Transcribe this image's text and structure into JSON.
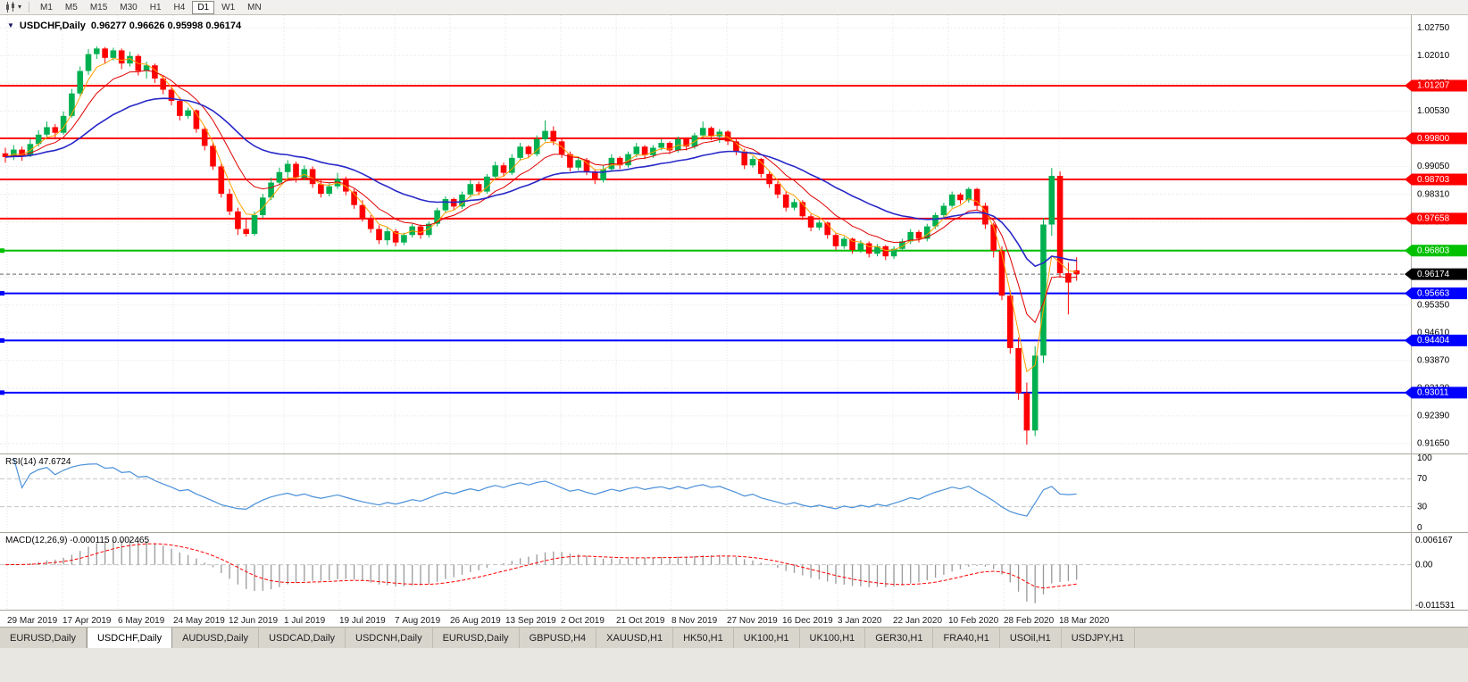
{
  "toolbar": {
    "timeframes": [
      "M1",
      "M5",
      "M15",
      "M30",
      "H1",
      "H4",
      "D1",
      "W1",
      "MN"
    ],
    "active_timeframe": "D1"
  },
  "chart": {
    "symbol_period": "USDCHF,Daily",
    "ohlc_line": "0.96277 0.96626 0.95998 0.96174"
  },
  "chart_data": {
    "type": "candlestick",
    "symbol": "USDCHF",
    "timeframe": "Daily",
    "title": "USDCHF,Daily 0.96277 0.96626 0.95998 0.96174",
    "current_bar": {
      "open": 0.96277,
      "high": 0.96626,
      "low": 0.95998,
      "close": 0.96174
    },
    "y_axis": {
      "price_max": 1.0309,
      "price_min": 0.9141,
      "tick_start": 1.0275,
      "tick_step": 0.0074,
      "tick_count": 16,
      "decimals": 5
    },
    "x_labels": [
      "29 Mar 2019",
      "17 Apr 2019",
      "6 May 2019",
      "24 May 2019",
      "12 Jun 2019",
      "1 Jul 2019",
      "19 Jul 2019",
      "7 Aug 2019",
      "26 Aug 2019",
      "13 Sep 2019",
      "2 Oct 2019",
      "21 Oct 2019",
      "8 Nov 2019",
      "27 Nov 2019",
      "16 Dec 2019",
      "3 Jan 2020",
      "22 Jan 2020",
      "10 Feb 2020",
      "28 Feb 2020",
      "18 Mar 2020"
    ],
    "colors": {
      "up": "#00b050",
      "down": "#ff0000",
      "grid": "#e3e3e3",
      "axis_text": "#000000",
      "date_text": "#1c1c1c"
    },
    "levels": [
      {
        "value": 1.01207,
        "color": "#ff0000",
        "width": 2,
        "handle": false
      },
      {
        "value": 0.998,
        "color": "#ff0000",
        "width": 2,
        "handle": false
      },
      {
        "value": 0.98703,
        "color": "#ff0000",
        "width": 2,
        "handle": false
      },
      {
        "value": 0.97658,
        "color": "#ff0000",
        "width": 2,
        "handle": false
      },
      {
        "value": 0.96803,
        "color": "#00c000",
        "width": 2,
        "handle": true
      },
      {
        "value": 0.95663,
        "color": "#0000ff",
        "width": 2,
        "handle": true
      },
      {
        "value": 0.94404,
        "color": "#0000ff",
        "width": 2,
        "handle": true
      },
      {
        "value": 0.93011,
        "color": "#0000ff",
        "width": 2,
        "handle": true
      }
    ],
    "current_price": {
      "value": 0.96174,
      "badge_color": "#000000",
      "line_color": "#666666"
    },
    "moving_averages": [
      {
        "period": 4,
        "color": "#ffa000",
        "width": 1
      },
      {
        "period": 9,
        "color": "#e00000",
        "width": 1
      },
      {
        "period": 25,
        "color": "#2828c8",
        "width": 1.6
      }
    ],
    "rsi": {
      "label": "RSI(14)",
      "value": "47.6724",
      "period": 14,
      "color": "#4a90d9",
      "axis_labels": [
        100,
        70,
        30,
        0
      ],
      "dashed_levels": [
        70,
        30
      ]
    },
    "macd": {
      "label": "MACD(12,26,9)",
      "values": "-0.000115 0.002465",
      "fast": 12,
      "slow": 26,
      "signal": 9,
      "axis_labels": [
        "0.006167",
        "0.00",
        "-0.011531"
      ],
      "hist_color": "#999999",
      "signal_color": "#ff0000"
    },
    "candles": [
      [
        0.994,
        0.9955,
        0.9915,
        0.993
      ],
      [
        0.993,
        0.9962,
        0.9922,
        0.995
      ],
      [
        0.995,
        0.9958,
        0.992,
        0.9935
      ],
      [
        0.9935,
        0.9978,
        0.993,
        0.9965
      ],
      [
        0.9965,
        1.0002,
        0.9958,
        0.999
      ],
      [
        0.999,
        1.0025,
        0.9982,
        1.001
      ],
      [
        1.001,
        1.0018,
        0.998,
        0.9995
      ],
      [
        0.9995,
        1.0052,
        0.999,
        1.004
      ],
      [
        1.004,
        1.0112,
        1.0035,
        1.01
      ],
      [
        1.01,
        1.0172,
        1.0095,
        1.016
      ],
      [
        1.016,
        1.0218,
        1.015,
        1.0205
      ],
      [
        1.0205,
        1.0226,
        1.0192,
        1.022
      ],
      [
        1.022,
        1.0224,
        1.018,
        1.0195
      ],
      [
        1.0195,
        1.0222,
        1.0188,
        1.0215
      ],
      [
        1.0215,
        1.022,
        1.0165,
        1.018
      ],
      [
        1.018,
        1.0212,
        1.0172,
        1.02
      ],
      [
        1.02,
        1.0205,
        1.0148,
        1.016
      ],
      [
        1.016,
        1.0185,
        1.014,
        1.0175
      ],
      [
        1.0175,
        1.018,
        1.0128,
        1.014
      ],
      [
        1.014,
        1.0148,
        1.0098,
        1.011
      ],
      [
        1.011,
        1.0122,
        1.0068,
        1.008
      ],
      [
        1.008,
        1.009,
        1.0028,
        1.004
      ],
      [
        1.004,
        1.0062,
        1.0032,
        1.0055
      ],
      [
        1.0055,
        1.0058,
        0.9995,
        1.0005
      ],
      [
        1.0005,
        1.0012,
        0.9948,
        0.996
      ],
      [
        0.996,
        0.9968,
        0.9896,
        0.9905
      ],
      [
        0.9905,
        0.9912,
        0.9822,
        0.9832
      ],
      [
        0.9832,
        0.9845,
        0.9775,
        0.9785
      ],
      [
        0.9785,
        0.9795,
        0.9722,
        0.9738
      ],
      [
        0.9738,
        0.9768,
        0.9718,
        0.9725
      ],
      [
        0.9725,
        0.9785,
        0.972,
        0.9775
      ],
      [
        0.9775,
        0.9832,
        0.9768,
        0.9822
      ],
      [
        0.9822,
        0.9875,
        0.9815,
        0.9862
      ],
      [
        0.9862,
        0.9902,
        0.9855,
        0.989
      ],
      [
        0.989,
        0.9922,
        0.9872,
        0.9912
      ],
      [
        0.9912,
        0.9918,
        0.9862,
        0.9875
      ],
      [
        0.9875,
        0.9908,
        0.9868,
        0.9898
      ],
      [
        0.9898,
        0.9905,
        0.9848,
        0.9858
      ],
      [
        0.9858,
        0.9872,
        0.9822,
        0.9832
      ],
      [
        0.9832,
        0.9862,
        0.9825,
        0.9852
      ],
      [
        0.9852,
        0.9888,
        0.9845,
        0.9872
      ],
      [
        0.9872,
        0.9878,
        0.9828,
        0.9838
      ],
      [
        0.9838,
        0.9845,
        0.9792,
        0.9802
      ],
      [
        0.9802,
        0.9815,
        0.9758,
        0.9768
      ],
      [
        0.9768,
        0.9775,
        0.9728,
        0.9738
      ],
      [
        0.9738,
        0.9748,
        0.9698,
        0.9708
      ],
      [
        0.9708,
        0.9742,
        0.9695,
        0.9732
      ],
      [
        0.9732,
        0.9738,
        0.9692,
        0.9702
      ],
      [
        0.9702,
        0.9728,
        0.9695,
        0.9722
      ],
      [
        0.9722,
        0.9752,
        0.9715,
        0.9745
      ],
      [
        0.9745,
        0.975,
        0.9712,
        0.9722
      ],
      [
        0.9722,
        0.9758,
        0.9715,
        0.9752
      ],
      [
        0.9752,
        0.9795,
        0.9745,
        0.9788
      ],
      [
        0.9788,
        0.9825,
        0.978,
        0.9818
      ],
      [
        0.9818,
        0.9822,
        0.9788,
        0.9798
      ],
      [
        0.9798,
        0.9838,
        0.9792,
        0.983
      ],
      [
        0.983,
        0.9868,
        0.9822,
        0.9858
      ],
      [
        0.9858,
        0.9865,
        0.9828,
        0.9838
      ],
      [
        0.9838,
        0.9885,
        0.9832,
        0.9878
      ],
      [
        0.9878,
        0.9918,
        0.987,
        0.9908
      ],
      [
        0.9908,
        0.9915,
        0.9878,
        0.9888
      ],
      [
        0.9888,
        0.9938,
        0.9882,
        0.9928
      ],
      [
        0.9928,
        0.9968,
        0.992,
        0.9958
      ],
      [
        0.9958,
        0.9962,
        0.9928,
        0.9938
      ],
      [
        0.9938,
        0.9988,
        0.9932,
        0.9978
      ],
      [
        0.9978,
        1.0028,
        0.9972,
        1.0
      ],
      [
        1.0,
        1.0012,
        0.9962,
        0.9972
      ],
      [
        0.9972,
        0.9978,
        0.9928,
        0.9938
      ],
      [
        0.9938,
        0.9945,
        0.9892,
        0.9902
      ],
      [
        0.9902,
        0.9932,
        0.9895,
        0.9922
      ],
      [
        0.9922,
        0.9928,
        0.9882,
        0.9892
      ],
      [
        0.9892,
        0.9898,
        0.9858,
        0.9868
      ],
      [
        0.9868,
        0.9908,
        0.9862,
        0.9898
      ],
      [
        0.9898,
        0.9938,
        0.9892,
        0.9928
      ],
      [
        0.9928,
        0.9932,
        0.9898,
        0.9908
      ],
      [
        0.9908,
        0.9945,
        0.9902,
        0.9938
      ],
      [
        0.9938,
        0.9968,
        0.993,
        0.9958
      ],
      [
        0.9958,
        0.9962,
        0.9925,
        0.9935
      ],
      [
        0.9935,
        0.9962,
        0.9928,
        0.9955
      ],
      [
        0.9955,
        0.9978,
        0.9948,
        0.9968
      ],
      [
        0.9968,
        0.9972,
        0.9938,
        0.9948
      ],
      [
        0.9948,
        0.9985,
        0.9942,
        0.9978
      ],
      [
        0.9978,
        0.9982,
        0.9948,
        0.9958
      ],
      [
        0.9958,
        0.9995,
        0.9952,
        0.9988
      ],
      [
        0.9988,
        1.0025,
        0.9982,
        1.0008
      ],
      [
        1.0008,
        1.0012,
        0.9975,
        0.9985
      ],
      [
        0.9985,
        1.0005,
        0.9968,
        0.9998
      ],
      [
        0.9998,
        1.0002,
        0.9962,
        0.9972
      ],
      [
        0.9972,
        0.9978,
        0.9935,
        0.9945
      ],
      [
        0.9945,
        0.9952,
        0.9898,
        0.9908
      ],
      [
        0.9908,
        0.9932,
        0.9902,
        0.9925
      ],
      [
        0.9925,
        0.9928,
        0.9875,
        0.9885
      ],
      [
        0.9885,
        0.9892,
        0.9848,
        0.9858
      ],
      [
        0.9858,
        0.9865,
        0.982,
        0.983
      ],
      [
        0.983,
        0.9838,
        0.9785,
        0.9795
      ],
      [
        0.9795,
        0.9818,
        0.9788,
        0.981
      ],
      [
        0.981,
        0.9815,
        0.9762,
        0.9772
      ],
      [
        0.9772,
        0.9778,
        0.9732,
        0.9742
      ],
      [
        0.9742,
        0.9762,
        0.9735,
        0.9755
      ],
      [
        0.9755,
        0.9758,
        0.9712,
        0.9722
      ],
      [
        0.9722,
        0.9728,
        0.9682,
        0.9692
      ],
      [
        0.9692,
        0.9718,
        0.9685,
        0.9712
      ],
      [
        0.9712,
        0.9715,
        0.9672,
        0.9682
      ],
      [
        0.9682,
        0.9708,
        0.9675,
        0.97
      ],
      [
        0.97,
        0.9705,
        0.9662,
        0.9672
      ],
      [
        0.9672,
        0.9698,
        0.9665,
        0.9692
      ],
      [
        0.9692,
        0.9695,
        0.9655,
        0.9665
      ],
      [
        0.9665,
        0.9692,
        0.9658,
        0.9685
      ],
      [
        0.9685,
        0.9712,
        0.9678,
        0.9705
      ],
      [
        0.9705,
        0.9738,
        0.9698,
        0.973
      ],
      [
        0.973,
        0.9735,
        0.9702,
        0.9712
      ],
      [
        0.9712,
        0.9752,
        0.9705,
        0.9745
      ],
      [
        0.9745,
        0.9782,
        0.9738,
        0.9775
      ],
      [
        0.9775,
        0.9808,
        0.9768,
        0.98
      ],
      [
        0.98,
        0.9838,
        0.9795,
        0.983
      ],
      [
        0.983,
        0.9835,
        0.9805,
        0.9815
      ],
      [
        0.9815,
        0.985,
        0.9808,
        0.9845
      ],
      [
        0.9845,
        0.9848,
        0.9788,
        0.98
      ],
      [
        0.98,
        0.9808,
        0.9738,
        0.975
      ],
      [
        0.975,
        0.9755,
        0.9662,
        0.968
      ],
      [
        0.968,
        0.9692,
        0.9548,
        0.956
      ],
      [
        0.956,
        0.9575,
        0.9405,
        0.942
      ],
      [
        0.942,
        0.9448,
        0.9282,
        0.93
      ],
      [
        0.93,
        0.9328,
        0.9162,
        0.92
      ],
      [
        0.92,
        0.9425,
        0.9185,
        0.94
      ],
      [
        0.94,
        0.9768,
        0.938,
        0.975
      ],
      [
        0.975,
        0.9901,
        0.972,
        0.988
      ],
      [
        0.988,
        0.9892,
        0.9608,
        0.962
      ],
      [
        0.962,
        0.9648,
        0.951,
        0.9595
      ],
      [
        0.96277,
        0.96626,
        0.95998,
        0.96174
      ]
    ]
  },
  "tabs": {
    "items": [
      "EURUSD,Daily",
      "USDCHF,Daily",
      "AUDUSD,Daily",
      "USDCAD,Daily",
      "USDCNH,Daily",
      "EURUSD,Daily",
      "GBPUSD,H4",
      "XAUUSD,H1",
      "HK50,H1",
      "UK100,H1",
      "UK100,H1",
      "GER30,H1",
      "FRA40,H1",
      "USOil,H1",
      "USDJPY,H1"
    ],
    "active_index": 1
  }
}
